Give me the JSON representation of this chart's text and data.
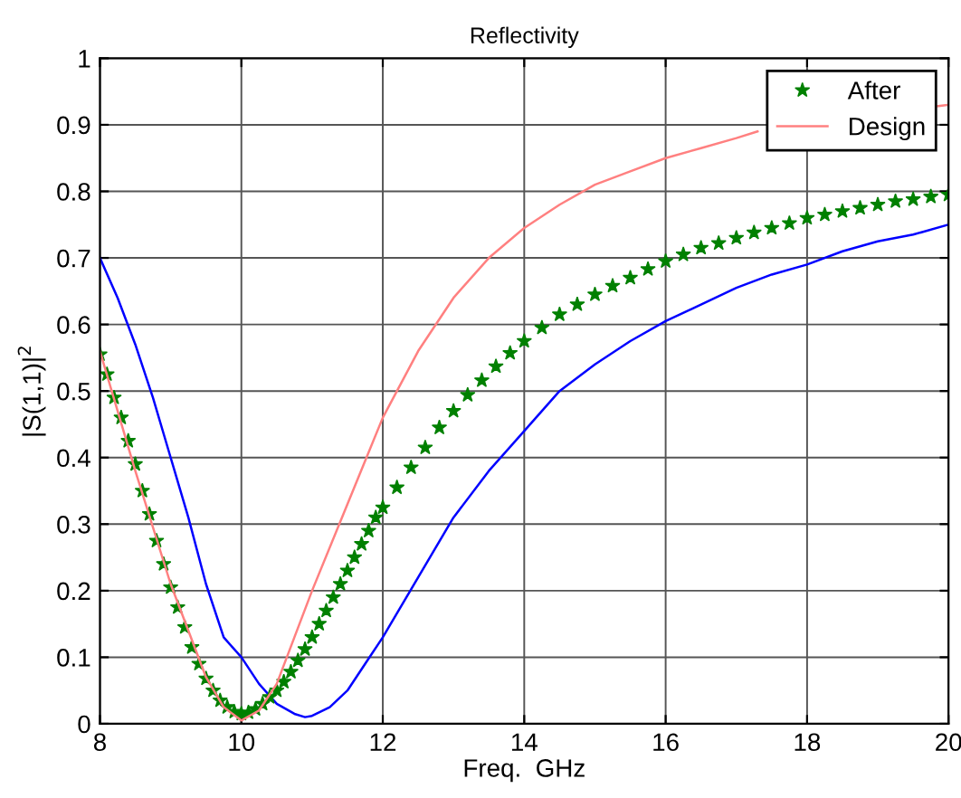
{
  "chart_data": {
    "type": "line",
    "title": "Reflectivity",
    "xlabel": "Freq.  GHz",
    "ylabel": "|S(1,1)|$^{2}$",
    "xlim": [
      8,
      20
    ],
    "ylim": [
      0,
      1
    ],
    "xticks": [
      8,
      10,
      12,
      14,
      16,
      18,
      20
    ],
    "yticks": [
      0,
      0.1,
      0.2,
      0.3,
      0.4,
      0.5,
      0.6,
      0.7,
      0.8,
      0.9,
      1
    ],
    "grid": true,
    "legend": "top right",
    "series": [
      {
        "color": "#0000ff",
        "marker": "none",
        "x": [
          8,
          8.25,
          8.5,
          8.75,
          9,
          9.25,
          9.5,
          9.75,
          10,
          10.25,
          10.5,
          10.75,
          10.9,
          11,
          11.25,
          11.5,
          11.75,
          12,
          12.5,
          13,
          13.5,
          14,
          14.5,
          15,
          15.5,
          16,
          16.5,
          17,
          17.5,
          18,
          18.5,
          19,
          19.5,
          20
        ],
        "values": [
          0.7,
          0.64,
          0.57,
          0.49,
          0.4,
          0.31,
          0.21,
          0.13,
          0.1,
          0.06,
          0.03,
          0.015,
          0.01,
          0.012,
          0.025,
          0.05,
          0.09,
          0.13,
          0.22,
          0.31,
          0.38,
          0.44,
          0.5,
          0.54,
          0.575,
          0.605,
          0.63,
          0.655,
          0.675,
          0.69,
          0.71,
          0.725,
          0.735,
          0.75
        ]
      },
      {
        "name": "After",
        "color": "#008000",
        "type": "scatter",
        "marker": "star",
        "x": [
          8,
          8.1,
          8.2,
          8.3,
          8.4,
          8.5,
          8.6,
          8.7,
          8.8,
          8.9,
          9,
          9.1,
          9.2,
          9.3,
          9.4,
          9.5,
          9.6,
          9.7,
          9.8,
          9.9,
          10,
          10.1,
          10.2,
          10.3,
          10.4,
          10.5,
          10.6,
          10.7,
          10.8,
          10.9,
          11,
          11.1,
          11.2,
          11.3,
          11.4,
          11.5,
          11.6,
          11.7,
          11.8,
          11.9,
          12,
          12.2,
          12.4,
          12.6,
          12.8,
          13,
          13.2,
          13.4,
          13.6,
          13.8,
          14,
          14.25,
          14.5,
          14.75,
          15,
          15.25,
          15.5,
          15.75,
          16,
          16.25,
          16.5,
          16.75,
          17,
          17.25,
          17.5,
          17.75,
          18,
          18.25,
          18.5,
          18.75,
          19,
          19.25,
          19.5,
          19.75,
          20
        ],
        "values": [
          0.555,
          0.525,
          0.49,
          0.46,
          0.425,
          0.39,
          0.35,
          0.315,
          0.275,
          0.24,
          0.205,
          0.175,
          0.145,
          0.115,
          0.09,
          0.068,
          0.05,
          0.035,
          0.025,
          0.018,
          0.015,
          0.017,
          0.022,
          0.03,
          0.04,
          0.05,
          0.063,
          0.078,
          0.095,
          0.112,
          0.13,
          0.15,
          0.17,
          0.19,
          0.21,
          0.23,
          0.25,
          0.27,
          0.29,
          0.31,
          0.325,
          0.355,
          0.385,
          0.415,
          0.445,
          0.47,
          0.494,
          0.516,
          0.537,
          0.557,
          0.575,
          0.595,
          0.615,
          0.63,
          0.645,
          0.658,
          0.67,
          0.683,
          0.695,
          0.705,
          0.715,
          0.722,
          0.73,
          0.738,
          0.745,
          0.752,
          0.76,
          0.765,
          0.77,
          0.775,
          0.78,
          0.785,
          0.788,
          0.792,
          0.795
        ]
      },
      {
        "name": "Design",
        "color": "#ff8080",
        "marker": "none",
        "x": [
          8,
          8.5,
          9,
          9.5,
          9.75,
          10,
          10.25,
          10.5,
          10.75,
          11,
          11.5,
          12,
          12.5,
          13,
          13.5,
          14,
          14.5,
          15,
          15.5,
          16,
          16.5,
          17,
          17.3,
          18.5,
          19.85,
          20
        ],
        "values": [
          0.56,
          0.38,
          0.21,
          0.07,
          0.025,
          0.005,
          0.02,
          0.06,
          0.13,
          0.2,
          0.33,
          0.46,
          0.56,
          0.64,
          0.7,
          0.745,
          0.78,
          0.81,
          0.83,
          0.85,
          0.865,
          0.88,
          0.89,
          null,
          0.928,
          0.93
        ]
      }
    ]
  }
}
